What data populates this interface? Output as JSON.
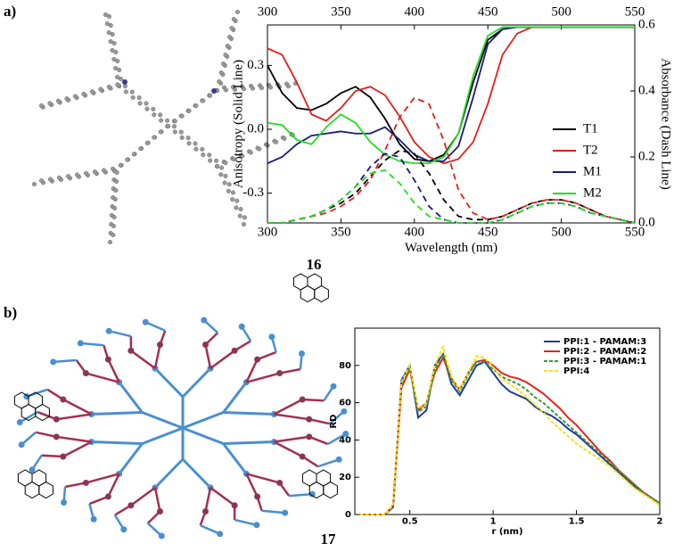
{
  "panel_labels": [
    "a)",
    "b)"
  ],
  "compound_numbers": [
    "16",
    "17"
  ],
  "chart_data": [
    {
      "type": "line",
      "x_label": "Wavelength (nm)",
      "y_label": "Anisotropy (Solid Line)",
      "y2_label": "Absorbance (Dash Line)",
      "x": [
        300,
        310,
        320,
        330,
        340,
        350,
        360,
        370,
        380,
        390,
        400,
        410,
        420,
        430,
        440,
        450,
        460,
        470,
        480,
        490,
        500,
        510,
        520,
        530,
        540,
        550
      ],
      "xlim": [
        300,
        550
      ],
      "xticks": [
        300,
        350,
        400,
        450,
        500,
        550
      ],
      "top_xaxis": true,
      "ylim": [
        -0.44,
        0.49
      ],
      "yticks": [
        -0.3,
        {
          "value": 0,
          "label": "0.0"
        },
        0.3
      ],
      "y2lim": [
        0,
        0.6
      ],
      "y2ticks": [
        {
          "value": 0,
          "label": "0.0"
        },
        0.2,
        0.4,
        0.6
      ],
      "legend": "right",
      "series": [
        {
          "name": "T1",
          "color": "#000000",
          "values": [
            0.3,
            0.17,
            0.1,
            0.09,
            0.12,
            0.17,
            0.2,
            0.15,
            0.05,
            -0.07,
            -0.14,
            -0.15,
            -0.12,
            -0.02,
            0.22,
            0.42,
            0.47,
            0.48,
            0.48,
            0.48,
            0.48,
            0.48,
            0.48,
            0.48,
            0.48,
            0.48
          ]
        },
        {
          "name": "T2",
          "color": "#e0201b",
          "values": [
            0.38,
            0.35,
            0.22,
            0.07,
            0.04,
            0.1,
            0.18,
            0.2,
            0.16,
            0.06,
            -0.06,
            -0.13,
            -0.16,
            -0.14,
            -0.06,
            0.12,
            0.35,
            0.45,
            0.48,
            0.48,
            0.48,
            0.48,
            0.48,
            0.48,
            0.48,
            0.48
          ]
        },
        {
          "name": "M1",
          "color": "#1a1a7a",
          "values": [
            -0.16,
            -0.13,
            -0.07,
            -0.03,
            -0.02,
            -0.01,
            -0.02,
            -0.02,
            0.01,
            -0.05,
            -0.12,
            -0.15,
            -0.15,
            -0.08,
            0.15,
            0.4,
            0.47,
            0.48,
            0.48,
            0.48,
            0.48,
            0.48,
            0.48,
            0.48,
            0.48,
            0.48
          ]
        },
        {
          "name": "M2",
          "color": "#22dd22",
          "values": [
            0.03,
            0.02,
            -0.05,
            -0.07,
            0.01,
            0.07,
            0.03,
            -0.06,
            -0.12,
            -0.15,
            -0.16,
            -0.16,
            -0.13,
            -0.02,
            0.25,
            0.44,
            0.48,
            0.48,
            0.48,
            0.48,
            0.48,
            0.48,
            0.48,
            0.48,
            0.48,
            0.48
          ]
        },
        {
          "color": "#000000",
          "axis": "y2",
          "dash": true,
          "values": [
            0,
            0,
            0.01,
            0.02,
            0.04,
            0.06,
            0.09,
            0.14,
            0.19,
            0.22,
            0.21,
            0.15,
            0.07,
            0.02,
            0.01,
            0.01,
            0.02,
            0.04,
            0.06,
            0.07,
            0.07,
            0.06,
            0.04,
            0.02,
            0.01,
            0
          ]
        },
        {
          "color": "#e0201b",
          "axis": "y2",
          "dash": true,
          "values": [
            0,
            0,
            0.01,
            0.02,
            0.03,
            0.05,
            0.08,
            0.13,
            0.22,
            0.32,
            0.38,
            0.36,
            0.25,
            0.1,
            0.03,
            0.01,
            0.02,
            0.04,
            0.06,
            0.07,
            0.07,
            0.06,
            0.04,
            0.02,
            0.01,
            0
          ]
        },
        {
          "color": "#1a1a7a",
          "axis": "y2",
          "dash": true,
          "values": [
            0,
            0,
            0.01,
            0.02,
            0.04,
            0.07,
            0.11,
            0.17,
            0.21,
            0.2,
            0.13,
            0.05,
            0.01,
            0,
            0,
            0,
            0.01,
            0.03,
            0.05,
            0.06,
            0.06,
            0.05,
            0.03,
            0.02,
            0.01,
            0
          ]
        },
        {
          "color": "#22dd22",
          "axis": "y2",
          "dash": true,
          "values": [
            0,
            0,
            0.01,
            0.02,
            0.04,
            0.07,
            0.11,
            0.15,
            0.16,
            0.12,
            0.06,
            0.02,
            0.01,
            0,
            0,
            0,
            0.01,
            0.03,
            0.05,
            0.06,
            0.06,
            0.05,
            0.03,
            0.02,
            0.01,
            0
          ]
        }
      ]
    },
    {
      "type": "line",
      "x_label": "r (nm)",
      "y_label": "RD",
      "x": [
        0.2,
        0.25,
        0.3,
        0.35,
        0.4,
        0.45,
        0.5,
        0.55,
        0.6,
        0.65,
        0.7,
        0.75,
        0.8,
        0.85,
        0.9,
        0.95,
        1.0,
        1.05,
        1.1,
        1.15,
        1.2,
        1.25,
        1.3,
        1.35,
        1.4,
        1.45,
        1.5,
        1.55,
        1.6,
        1.65,
        1.7,
        1.75,
        1.8,
        1.85,
        1.9,
        1.95,
        2.0
      ],
      "xlim": [
        0.17,
        2
      ],
      "xticks": [
        0.5,
        1,
        1.5,
        2
      ],
      "ylim": [
        0,
        100
      ],
      "yticks": [
        0,
        20,
        40,
        60,
        80
      ],
      "legend": "upper right",
      "series": [
        {
          "name": "PPI:1 - PAMAM:3",
          "color": "#1f3b9a",
          "values": [
            0,
            0,
            0,
            0,
            4,
            72,
            80,
            52,
            56,
            80,
            86,
            70,
            64,
            72,
            80,
            82,
            76,
            70,
            66,
            64,
            62,
            58,
            55,
            53,
            50,
            46,
            43,
            39,
            35,
            31,
            27,
            23,
            19,
            15,
            12,
            9,
            6
          ]
        },
        {
          "name": "PPI:2 - PAMAM:2",
          "color": "#e8231c",
          "values": [
            0,
            0,
            0,
            0,
            5,
            68,
            78,
            56,
            60,
            76,
            84,
            73,
            67,
            76,
            82,
            83,
            80,
            76,
            74,
            73,
            71,
            68,
            65,
            61,
            57,
            52,
            48,
            43,
            38,
            33,
            29,
            24,
            20,
            16,
            12,
            9,
            6
          ]
        },
        {
          "name": "PPI:3 - PAMAM:1",
          "color": "#3a9a3a",
          "dash": true,
          "values": [
            0,
            0,
            0,
            0,
            5,
            70,
            79,
            55,
            58,
            78,
            86,
            72,
            66,
            75,
            82,
            82,
            78,
            74,
            72,
            70,
            67,
            63,
            60,
            56,
            52,
            48,
            44,
            40,
            36,
            32,
            28,
            24,
            20,
            16,
            12,
            9,
            6
          ]
        },
        {
          "name": "PPI:4",
          "color": "#f2e21a",
          "dash": true,
          "values": [
            0,
            0,
            0,
            0,
            5,
            71,
            80,
            57,
            60,
            80,
            90,
            74,
            67,
            76,
            85,
            84,
            79,
            73,
            70,
            67,
            63,
            59,
            55,
            50,
            46,
            42,
            38,
            35,
            32,
            29,
            26,
            22,
            18,
            14,
            11,
            8,
            5
          ]
        }
      ]
    }
  ]
}
